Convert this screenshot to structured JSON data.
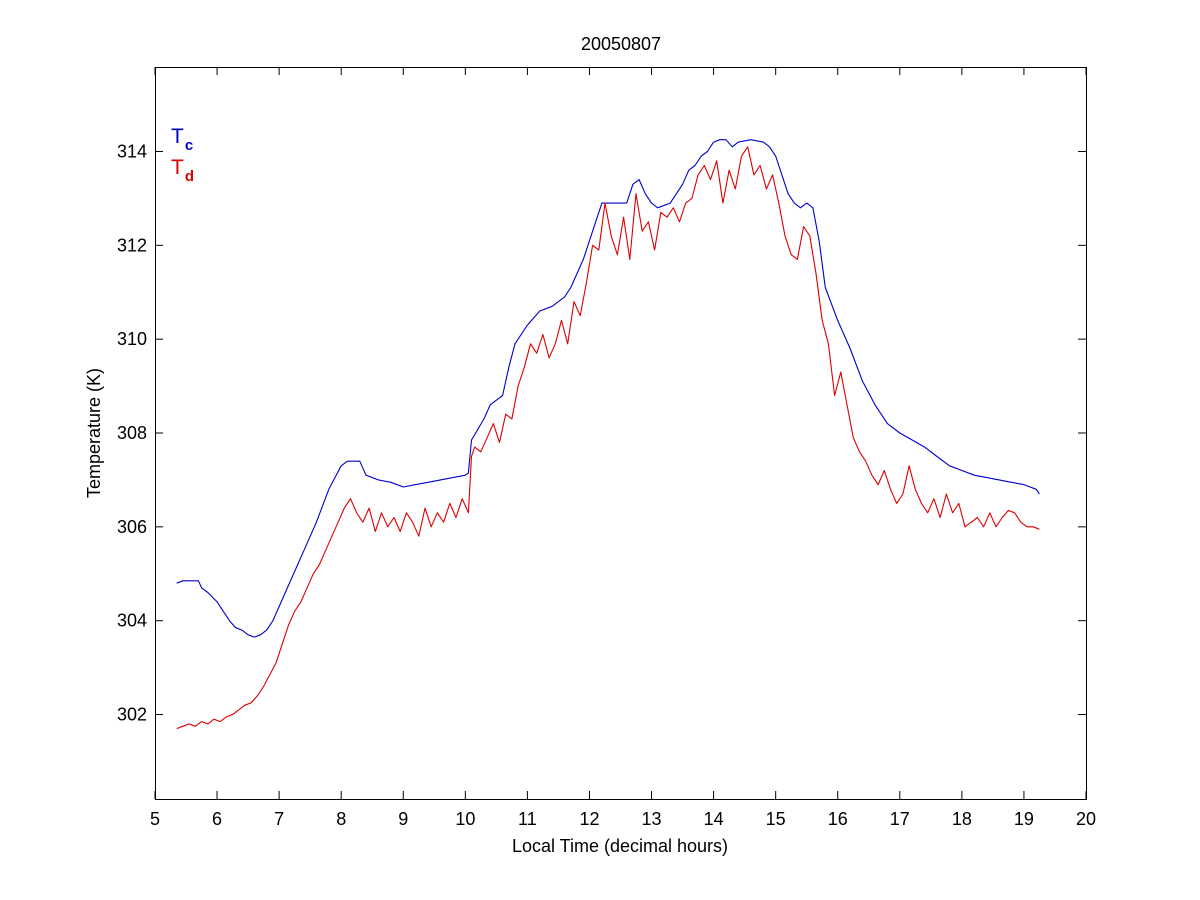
{
  "chart_data": {
    "type": "line",
    "title": "20050807",
    "xlabel": "Local Time (decimal hours)",
    "ylabel": "Temperature (K)",
    "xlim": [
      5,
      20
    ],
    "ylim": [
      300.2,
      315.8
    ],
    "xticks": [
      5,
      6,
      7,
      8,
      9,
      10,
      11,
      12,
      13,
      14,
      15,
      16,
      17,
      18,
      19,
      20
    ],
    "yticks": [
      302,
      304,
      306,
      308,
      310,
      312,
      314
    ],
    "grid": false,
    "legend": {
      "placement": "top-left",
      "entries": [
        {
          "main": "T",
          "sub": "c",
          "color": "#0000cc"
        },
        {
          "main": "T",
          "sub": "d",
          "color": "#dd0000"
        }
      ]
    },
    "series": [
      {
        "color": "#0000cc",
        "x": [
          5.35,
          5.45,
          5.7,
          5.75,
          5.85,
          6.0,
          6.1,
          6.2,
          6.3,
          6.4,
          6.5,
          6.6,
          6.7,
          6.8,
          6.9,
          7.0,
          7.2,
          7.4,
          7.6,
          7.8,
          8.0,
          8.1,
          8.3,
          8.4,
          8.6,
          8.8,
          9.0,
          9.2,
          9.4,
          9.6,
          9.8,
          10.0,
          10.05,
          10.1,
          10.3,
          10.4,
          10.5,
          10.6,
          10.7,
          10.8,
          11.0,
          11.2,
          11.4,
          11.6,
          11.7,
          11.9,
          12.0,
          12.1,
          12.2,
          12.4,
          12.6,
          12.7,
          12.8,
          12.9,
          13.0,
          13.1,
          13.3,
          13.4,
          13.5,
          13.6,
          13.7,
          13.8,
          13.9,
          14.0,
          14.1,
          14.2,
          14.3,
          14.4,
          14.6,
          14.8,
          14.9,
          15.0,
          15.1,
          15.2,
          15.3,
          15.4,
          15.5,
          15.6,
          15.7,
          15.8,
          16.0,
          16.2,
          16.4,
          16.6,
          16.8,
          17.0,
          17.2,
          17.4,
          17.6,
          17.8,
          18.0,
          18.2,
          18.4,
          18.6,
          18.8,
          19.0,
          19.2,
          19.25
        ],
        "values": [
          304.8,
          304.85,
          304.85,
          304.7,
          304.6,
          304.4,
          304.2,
          304.0,
          303.85,
          303.8,
          303.7,
          303.65,
          303.7,
          303.8,
          304.0,
          304.3,
          304.9,
          305.5,
          306.1,
          306.8,
          307.3,
          307.4,
          307.4,
          307.1,
          307.0,
          306.95,
          306.85,
          306.9,
          306.95,
          307.0,
          307.05,
          307.1,
          307.15,
          307.85,
          308.3,
          308.6,
          308.7,
          308.8,
          309.4,
          309.9,
          310.3,
          310.6,
          310.7,
          310.9,
          311.1,
          311.7,
          312.1,
          312.5,
          312.9,
          312.9,
          312.9,
          313.3,
          313.4,
          313.1,
          312.9,
          312.8,
          312.9,
          313.1,
          313.3,
          313.6,
          313.7,
          313.9,
          314.0,
          314.2,
          314.25,
          314.25,
          314.1,
          314.2,
          314.25,
          314.2,
          314.1,
          313.9,
          313.5,
          313.1,
          312.9,
          312.8,
          312.9,
          312.8,
          312.1,
          311.1,
          310.4,
          309.8,
          309.1,
          308.6,
          308.2,
          308.0,
          307.85,
          307.7,
          307.5,
          307.3,
          307.2,
          307.1,
          307.05,
          307.0,
          306.95,
          306.9,
          306.8,
          306.7
        ]
      },
      {
        "color": "#dd0000",
        "x": [
          5.35,
          5.45,
          5.55,
          5.65,
          5.75,
          5.85,
          5.95,
          6.05,
          6.15,
          6.25,
          6.35,
          6.45,
          6.55,
          6.65,
          6.75,
          6.85,
          6.95,
          7.05,
          7.15,
          7.25,
          7.35,
          7.45,
          7.55,
          7.65,
          7.75,
          7.85,
          7.95,
          8.05,
          8.15,
          8.25,
          8.35,
          8.45,
          8.55,
          8.65,
          8.75,
          8.85,
          8.95,
          9.05,
          9.15,
          9.25,
          9.35,
          9.45,
          9.55,
          9.65,
          9.75,
          9.85,
          9.95,
          10.05,
          10.1,
          10.15,
          10.25,
          10.35,
          10.45,
          10.55,
          10.65,
          10.75,
          10.85,
          10.95,
          11.05,
          11.15,
          11.25,
          11.35,
          11.45,
          11.55,
          11.65,
          11.75,
          11.85,
          11.95,
          12.05,
          12.15,
          12.25,
          12.35,
          12.45,
          12.55,
          12.65,
          12.75,
          12.85,
          12.95,
          13.05,
          13.15,
          13.25,
          13.35,
          13.45,
          13.55,
          13.65,
          13.75,
          13.85,
          13.95,
          14.05,
          14.15,
          14.25,
          14.35,
          14.45,
          14.55,
          14.65,
          14.75,
          14.85,
          14.95,
          15.05,
          15.15,
          15.25,
          15.35,
          15.45,
          15.55,
          15.65,
          15.75,
          15.85,
          15.95,
          16.05,
          16.15,
          16.25,
          16.35,
          16.45,
          16.55,
          16.65,
          16.75,
          16.85,
          16.95,
          17.05,
          17.15,
          17.25,
          17.35,
          17.45,
          17.55,
          17.65,
          17.75,
          17.85,
          17.95,
          18.05,
          18.15,
          18.25,
          18.35,
          18.45,
          18.55,
          18.65,
          18.75,
          18.85,
          18.95,
          19.05,
          19.15,
          19.25
        ],
        "values": [
          301.7,
          301.75,
          301.8,
          301.75,
          301.85,
          301.8,
          301.9,
          301.85,
          301.95,
          302.0,
          302.1,
          302.2,
          302.25,
          302.4,
          302.6,
          302.85,
          303.1,
          303.5,
          303.9,
          304.2,
          304.4,
          304.7,
          305.0,
          305.2,
          305.5,
          305.8,
          306.1,
          306.4,
          306.6,
          306.3,
          306.1,
          306.4,
          305.9,
          306.3,
          306.0,
          306.2,
          305.9,
          306.3,
          306.1,
          305.8,
          306.4,
          306.0,
          306.3,
          306.1,
          306.5,
          306.2,
          306.6,
          306.3,
          307.5,
          307.7,
          307.6,
          307.9,
          308.2,
          307.8,
          308.4,
          308.3,
          309.0,
          309.4,
          309.9,
          309.7,
          310.1,
          309.6,
          309.9,
          310.4,
          309.9,
          310.8,
          310.5,
          311.2,
          312.0,
          311.9,
          312.9,
          312.2,
          311.8,
          312.6,
          311.7,
          313.1,
          312.3,
          312.5,
          311.9,
          312.7,
          312.6,
          312.8,
          312.5,
          312.9,
          313.0,
          313.5,
          313.7,
          313.4,
          313.8,
          312.9,
          313.6,
          313.2,
          313.9,
          314.1,
          313.5,
          313.7,
          313.2,
          313.5,
          312.9,
          312.2,
          311.8,
          311.7,
          312.4,
          312.2,
          311.4,
          310.4,
          309.9,
          308.8,
          309.3,
          308.6,
          307.9,
          307.6,
          307.4,
          307.1,
          306.9,
          307.2,
          306.8,
          306.5,
          306.7,
          307.3,
          306.8,
          306.5,
          306.3,
          306.6,
          306.2,
          306.7,
          306.3,
          306.5,
          306.0,
          306.1,
          306.2,
          306.0,
          306.3,
          306.0,
          306.2,
          306.35,
          306.3,
          306.1,
          306.0,
          306.0,
          305.95
        ]
      }
    ]
  }
}
